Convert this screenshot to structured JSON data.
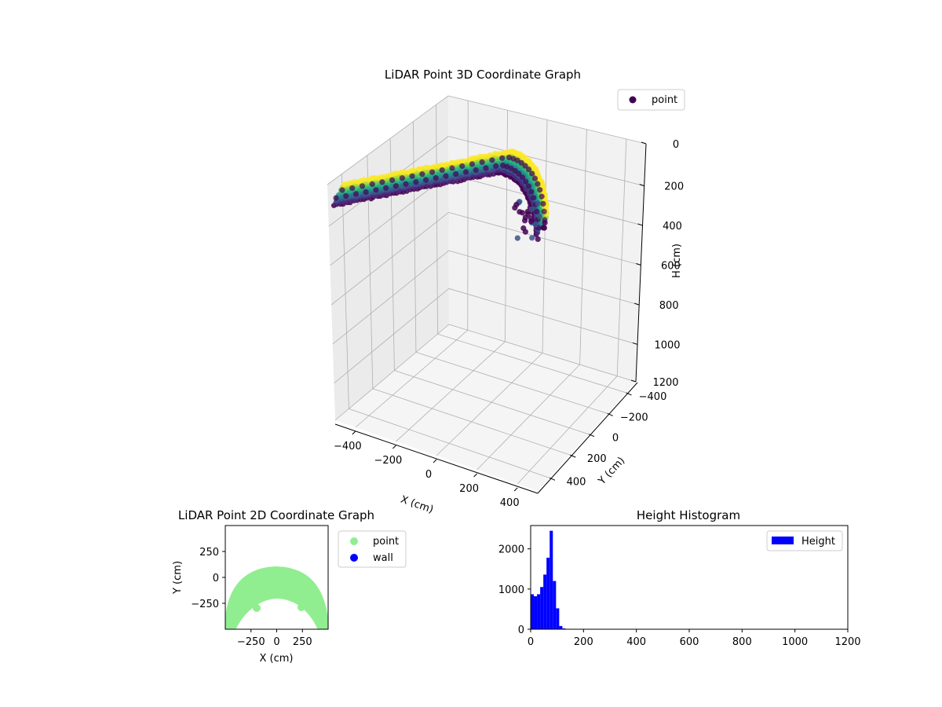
{
  "chart_data": [
    {
      "type": "scatter",
      "subtype": "3d",
      "title": "LiDAR Point 3D Coordinate Graph",
      "xlabel": "X (cm)",
      "ylabel": "Y (cm)",
      "zlabel": "H (cm)",
      "xlim": [
        -500,
        500
      ],
      "ylim": [
        -500,
        500
      ],
      "zlim": [
        0,
        1200
      ],
      "z_inverted": true,
      "x_ticks": [
        "−400",
        "−200",
        "0",
        "200",
        "400"
      ],
      "y_ticks": [
        "−400",
        "−200",
        "0",
        "200",
        "400"
      ],
      "z_ticks": [
        "0",
        "200",
        "400",
        "600",
        "800",
        "1000",
        "1200"
      ],
      "series": [
        {
          "name": "point",
          "color": "#440154",
          "colormap": "viridis"
        }
      ],
      "legend": {
        "position": "top-right",
        "entries": [
          "point"
        ]
      },
      "grid": true
    },
    {
      "type": "scatter",
      "title": "LiDAR Point 2D Coordinate Graph",
      "xlabel": "X (cm)",
      "ylabel": "Y (cm)",
      "xlim": [
        -500,
        500
      ],
      "ylim": [
        -500,
        500
      ],
      "x_ticks": [
        "−250",
        "0",
        "250"
      ],
      "y_ticks": [
        "250",
        "0",
        "−250"
      ],
      "series": [
        {
          "name": "point",
          "color": "#90ee90"
        },
        {
          "name": "wall",
          "color": "#0000ff"
        }
      ],
      "legend": {
        "position": "outside-right",
        "entries": [
          "point",
          "wall"
        ]
      }
    },
    {
      "type": "bar",
      "subtype": "histogram",
      "title": "Height Histogram",
      "xlabel": "",
      "ylabel": "",
      "xlim": [
        0,
        1200
      ],
      "ylim": [
        0,
        2580
      ],
      "x_ticks": [
        "0",
        "200",
        "400",
        "600",
        "800",
        "1000",
        "1200"
      ],
      "y_ticks": [
        "0",
        "1000",
        "2000"
      ],
      "bin_width": 12,
      "bins_start": [
        0,
        12,
        24,
        36,
        48,
        60,
        72,
        84,
        96,
        108,
        120,
        132
      ],
      "values": [
        870,
        820,
        870,
        1050,
        1360,
        1780,
        2450,
        1200,
        520,
        80,
        20,
        5
      ],
      "series": [
        {
          "name": "Height",
          "color": "#0000ff"
        }
      ],
      "legend": {
        "position": "top-right",
        "entries": [
          "Height"
        ]
      }
    }
  ]
}
